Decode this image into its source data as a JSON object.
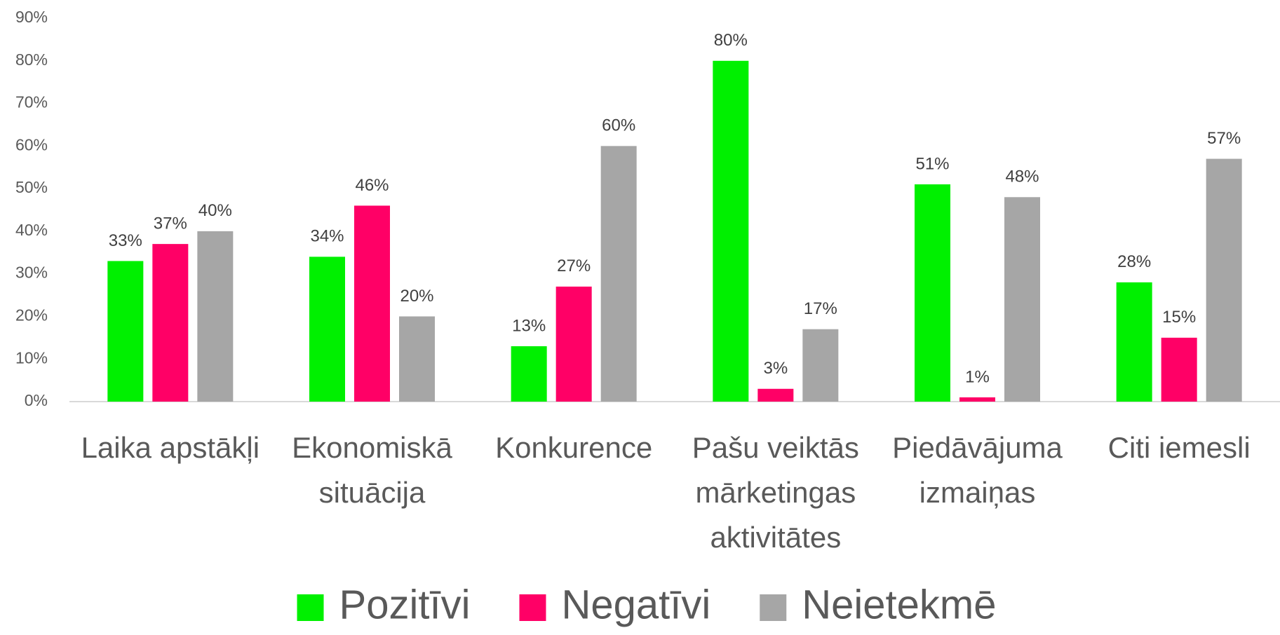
{
  "chart_data": {
    "type": "bar",
    "categories": [
      "Laika apstākļi",
      "Ekonomiskā situācija",
      "Konkurence",
      "Pašu veiktās mārketingas aktivitātes",
      "Piedāvājuma izmaiņas",
      "Citi iemesli"
    ],
    "series": [
      {
        "name": "Pozitīvi",
        "color": "#00f000",
        "values": [
          33,
          34,
          13,
          80,
          51,
          28
        ],
        "value_labels": [
          "33%",
          "34%",
          "13%",
          "80%",
          "51%",
          "28%"
        ]
      },
      {
        "name": "Negatīvi",
        "color": "#ff0066",
        "values": [
          37,
          46,
          27,
          3,
          1,
          15
        ],
        "value_labels": [
          "37%",
          "46%",
          "27%",
          "3%",
          "1%",
          "15%"
        ]
      },
      {
        "name": "Neietekmē",
        "color": "#a6a6a6",
        "values": [
          40,
          20,
          60,
          17,
          48,
          57
        ],
        "value_labels": [
          "40%",
          "20%",
          "60%",
          "17%",
          "48%",
          "57%"
        ]
      }
    ],
    "ylim": [
      0,
      90
    ],
    "yticks": [
      {
        "value": 0,
        "label": "0%"
      },
      {
        "value": 10,
        "label": "10%"
      },
      {
        "value": 20,
        "label": "20%"
      },
      {
        "value": 30,
        "label": "30%"
      },
      {
        "value": 40,
        "label": "40%"
      },
      {
        "value": 50,
        "label": "50%"
      },
      {
        "value": 60,
        "label": "60%"
      },
      {
        "value": 70,
        "label": "70%"
      },
      {
        "value": 80,
        "label": "80%"
      },
      {
        "value": 90,
        "label": "90%"
      }
    ],
    "grid": false,
    "legend": "bottom"
  }
}
